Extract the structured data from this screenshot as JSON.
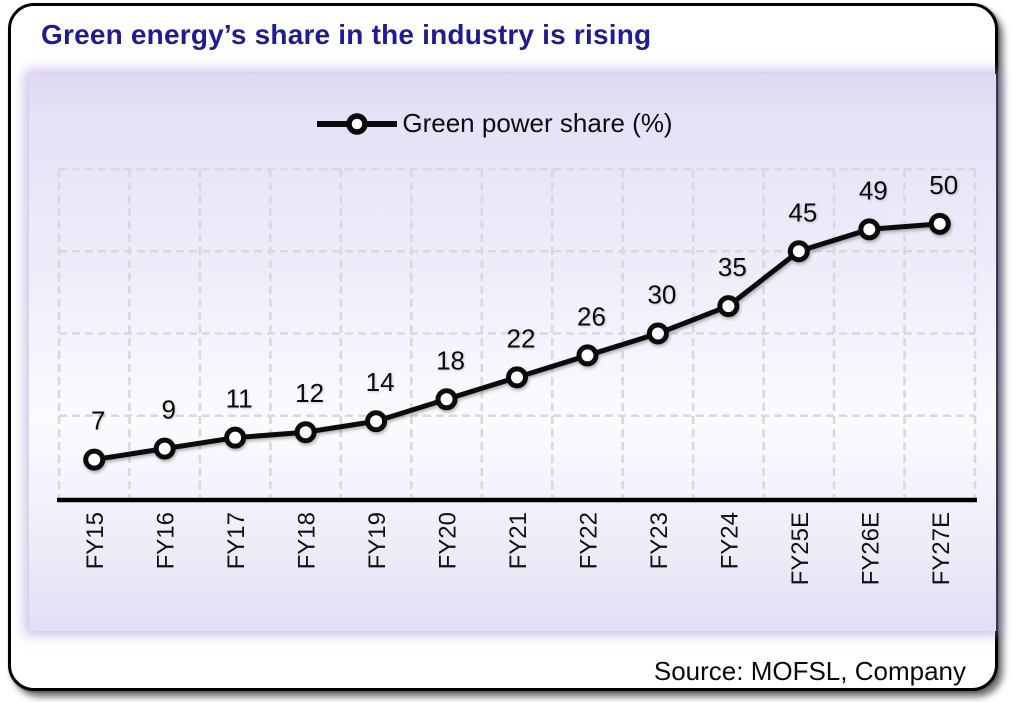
{
  "title": {
    "text": "Green energy’s share in the industry is rising",
    "color": "#1f1c90"
  },
  "legend": {
    "label": "Green power share (%)"
  },
  "source": {
    "text": "Source: MOFSL, Company"
  },
  "chart_data": {
    "type": "line",
    "title": "Green energy’s share in the industry is rising",
    "categories": [
      "FY15",
      "FY16",
      "FY17",
      "FY18",
      "FY19",
      "FY20",
      "FY21",
      "FY22",
      "FY23",
      "FY24",
      "FY25E",
      "FY26E",
      "FY27E"
    ],
    "series": [
      {
        "name": "Green power share (%)",
        "values": [
          7,
          9,
          11,
          12,
          14,
          18,
          22,
          26,
          30,
          35,
          45,
          49,
          50
        ]
      }
    ],
    "xlabel": "",
    "ylabel": "",
    "ylim": [
      0,
      60
    ],
    "grid": {
      "on": true,
      "style": "dashed",
      "horizontal_step": 15,
      "vertical": true,
      "color": "#d9d9d9"
    },
    "legend_position": "top-center",
    "data_labels": true,
    "x_tick_rotation": -90,
    "line_color": "#0b0b0b",
    "marker_fill": "#ffffff",
    "marker_stroke": "#0b0b0b",
    "axis_color": "#000000",
    "label_color": "#0a0a0a",
    "plot_bg_top": "#e2dcf4",
    "plot_bg_mid": "#fbfbfe",
    "plot_bg_bottom": "#e2def5"
  }
}
